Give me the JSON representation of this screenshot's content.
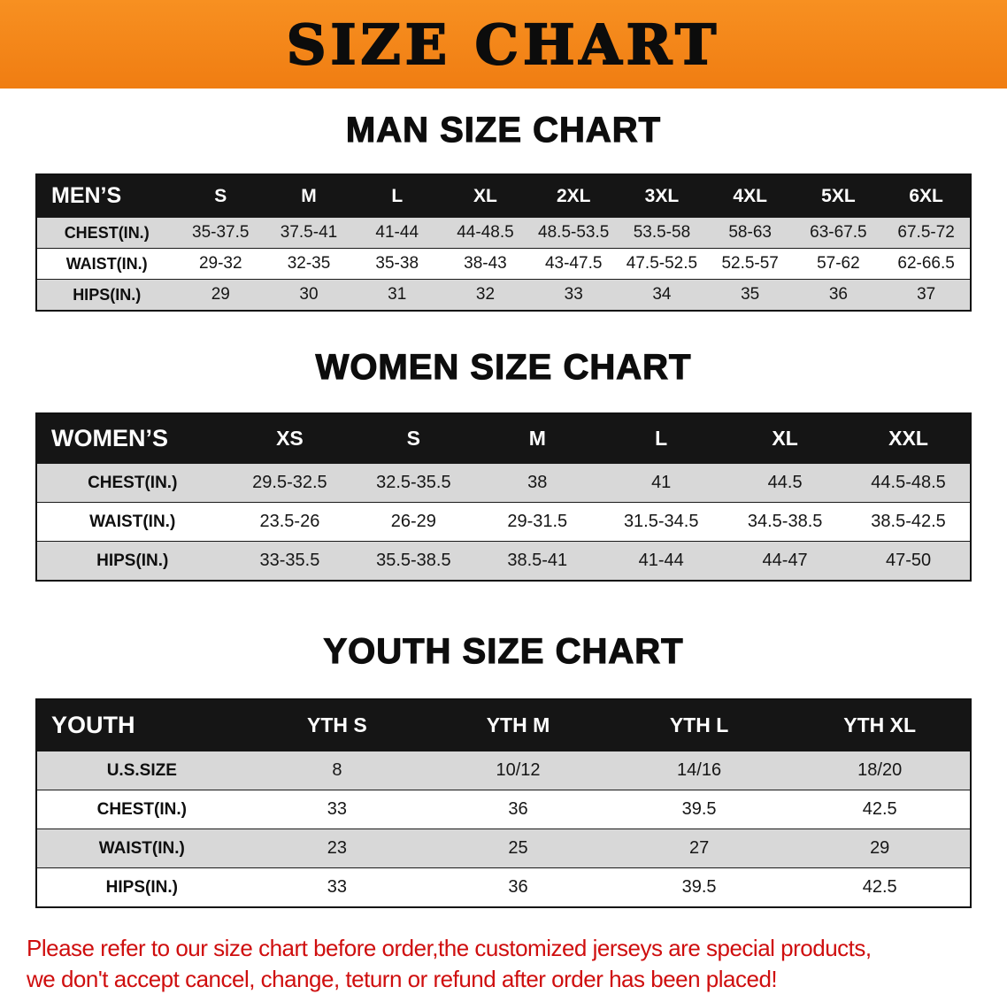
{
  "banner": {
    "title": "SIZE CHART"
  },
  "theme": {
    "orange": "#f79021",
    "orange_deep": "#f07d12",
    "header_black": "#151515",
    "row_gray": "#d8d8d8",
    "red": "#cf0e0e"
  },
  "chart_data": [
    {
      "type": "table",
      "title": "MAN SIZE CHART",
      "header": [
        "MEN’S",
        "S",
        "M",
        "L",
        "XL",
        "2XL",
        "3XL",
        "4XL",
        "5XL",
        "6XL"
      ],
      "rows": [
        {
          "label": "CHEST(IN.)",
          "values": [
            "35-37.5",
            "37.5-41",
            "41-44",
            "44-48.5",
            "48.5-53.5",
            "53.5-58",
            "58-63",
            "63-67.5",
            "67.5-72"
          ]
        },
        {
          "label": "WAIST(IN.)",
          "values": [
            "29-32",
            "32-35",
            "35-38",
            "38-43",
            "43-47.5",
            "47.5-52.5",
            "52.5-57",
            "57-62",
            "62-66.5"
          ]
        },
        {
          "label": "HIPS(IN.)",
          "values": [
            "29",
            "30",
            "31",
            "32",
            "33",
            "34",
            "35",
            "36",
            "37"
          ]
        }
      ]
    },
    {
      "type": "table",
      "title": "WOMEN SIZE CHART",
      "header": [
        "WOMEN’S",
        "XS",
        "S",
        "M",
        "L",
        "XL",
        "XXL"
      ],
      "rows": [
        {
          "label": "CHEST(IN.)",
          "values": [
            "29.5-32.5",
            "32.5-35.5",
            "38",
            "41",
            "44.5",
            "44.5-48.5"
          ]
        },
        {
          "label": "WAIST(IN.)",
          "values": [
            "23.5-26",
            "26-29",
            "29-31.5",
            "31.5-34.5",
            "34.5-38.5",
            "38.5-42.5"
          ]
        },
        {
          "label": "HIPS(IN.)",
          "values": [
            "33-35.5",
            "35.5-38.5",
            "38.5-41",
            "41-44",
            "44-47",
            "47-50"
          ]
        }
      ]
    },
    {
      "type": "table",
      "title": "YOUTH SIZE CHART",
      "header": [
        "YOUTH",
        "YTH S",
        "YTH M",
        "YTH L",
        "YTH XL"
      ],
      "rows": [
        {
          "label": "U.S.SIZE",
          "values": [
            "8",
            "10/12",
            "14/16",
            "18/20"
          ]
        },
        {
          "label": "CHEST(IN.)",
          "values": [
            "33",
            "36",
            "39.5",
            "42.5"
          ]
        },
        {
          "label": "WAIST(IN.)",
          "values": [
            "23",
            "25",
            "27",
            "29"
          ]
        },
        {
          "label": "HIPS(IN.)",
          "values": [
            "33",
            "36",
            "39.5",
            "42.5"
          ]
        }
      ]
    }
  ],
  "disclaimer": {
    "line1": "Please refer to our size chart before order,the customized jerseys are special products,",
    "line2": "we don't accept cancel, change, teturn or refund after order has been placed!"
  }
}
